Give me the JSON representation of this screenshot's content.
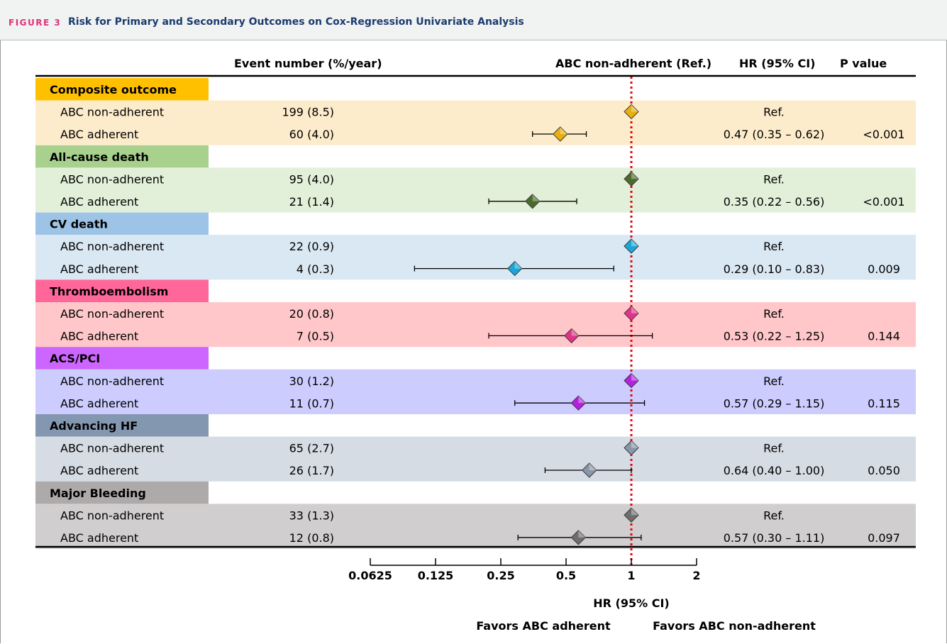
{
  "figure": {
    "label": "FIGURE 3",
    "title": "Risk for Primary and Secondary Outcomes on Cox-Regression Univariate Analysis"
  },
  "columns": {
    "events": "Event number (%/year)",
    "reference": "ABC non-adherent (Ref.)",
    "hr": "HR (95% CI)",
    "p": "P value"
  },
  "chart_data": {
    "type": "forest",
    "x_scale": "log2",
    "xlim": [
      0.0625,
      2
    ],
    "x_ticks": [
      {
        "value": 0.0625,
        "label": "0.0625"
      },
      {
        "value": 0.125,
        "label": "0.125"
      },
      {
        "value": 0.25,
        "label": "0.25"
      },
      {
        "value": 0.5,
        "label": "0.5"
      },
      {
        "value": 1,
        "label": "1"
      },
      {
        "value": 2,
        "label": "2"
      }
    ],
    "reference_line": 1,
    "xlabel": "HR (95% CI)",
    "favors_left": "Favors ABC adherent",
    "favors_right": "Favors ABC non-adherent",
    "groups": [
      {
        "name": "Composite outcome",
        "header_color": "#ffc000",
        "band_color": "#fdeccb",
        "marker_color": "#e6b010",
        "rows": [
          {
            "label": "ABC non-adherent",
            "events": "199 (8.5)",
            "hr": 1,
            "lo": null,
            "hi": null,
            "hr_text": "Ref.",
            "p": ""
          },
          {
            "label": "ABC adherent",
            "events": "60 (4.0)",
            "hr": 0.47,
            "lo": 0.35,
            "hi": 0.62,
            "hr_text": "0.47 (0.35 – 0.62)",
            "p": "<0.001"
          }
        ]
      },
      {
        "name": "All-cause death",
        "header_color": "#a9d18e",
        "band_color": "#e2f0d9",
        "marker_color": "#4a6b2a",
        "rows": [
          {
            "label": "ABC non-adherent",
            "events": "95 (4.0)",
            "hr": 1,
            "lo": null,
            "hi": null,
            "hr_text": "Ref.",
            "p": ""
          },
          {
            "label": "ABC adherent",
            "events": "21 (1.4)",
            "hr": 0.35,
            "lo": 0.22,
            "hi": 0.56,
            "hr_text": "0.35 (0.22 – 0.56)",
            "p": "<0.001"
          }
        ]
      },
      {
        "name": "CV death",
        "header_color": "#9dc3e6",
        "band_color": "#dae8f3",
        "marker_color": "#1aa7d8",
        "rows": [
          {
            "label": "ABC non-adherent",
            "events": "22 (0.9)",
            "hr": 1,
            "lo": null,
            "hi": null,
            "hr_text": "Ref.",
            "p": ""
          },
          {
            "label": "ABC adherent",
            "events": "4 (0.3)",
            "hr": 0.29,
            "lo": 0.1,
            "hi": 0.83,
            "hr_text": "0.29 (0.10 – 0.83)",
            "p": "0.009"
          }
        ]
      },
      {
        "name": "Thromboembolism",
        "header_color": "#ff6699",
        "band_color": "#ffc7c9",
        "marker_color": "#e0338a",
        "rows": [
          {
            "label": "ABC non-adherent",
            "events": "20 (0.8)",
            "hr": 1,
            "lo": null,
            "hi": null,
            "hr_text": "Ref.",
            "p": ""
          },
          {
            "label": "ABC adherent",
            "events": "7 (0.5)",
            "hr": 0.53,
            "lo": 0.22,
            "hi": 1.25,
            "hr_text": "0.53 (0.22 – 1.25)",
            "p": "0.144"
          }
        ]
      },
      {
        "name": "ACS/PCI",
        "header_color": "#cc66ff",
        "band_color": "#ccccff",
        "marker_color": "#b41fe0",
        "rows": [
          {
            "label": "ABC non-adherent",
            "events": "30 (1.2)",
            "hr": 1,
            "lo": null,
            "hi": null,
            "hr_text": "Ref.",
            "p": ""
          },
          {
            "label": "ABC adherent",
            "events": "11 (0.7)",
            "hr": 0.57,
            "lo": 0.29,
            "hi": 1.15,
            "hr_text": "0.57 (0.29 – 1.15)",
            "p": "0.115"
          }
        ]
      },
      {
        "name": "Advancing HF",
        "header_color": "#8497b0",
        "band_color": "#d6dce4",
        "marker_color": "#8896a8",
        "rows": [
          {
            "label": "ABC non-adherent",
            "events": "65 (2.7)",
            "hr": 1,
            "lo": null,
            "hi": null,
            "hr_text": "Ref.",
            "p": ""
          },
          {
            "label": "ABC adherent",
            "events": "26 (1.7)",
            "hr": 0.64,
            "lo": 0.4,
            "hi": 1.0,
            "hr_text": "0.64 (0.40 – 1.00)",
            "p": "0.050"
          }
        ]
      },
      {
        "name": "Major Bleeding",
        "header_color": "#aeaaaa",
        "band_color": "#d0cece",
        "marker_color": "#6e6e6e",
        "rows": [
          {
            "label": "ABC non-adherent",
            "events": "33 (1.3)",
            "hr": 1,
            "lo": null,
            "hi": null,
            "hr_text": "Ref.",
            "p": ""
          },
          {
            "label": "ABC adherent",
            "events": "12 (0.8)",
            "hr": 0.57,
            "lo": 0.3,
            "hi": 1.11,
            "hr_text": "0.57 (0.30 – 1.11)",
            "p": "0.097"
          }
        ]
      }
    ]
  }
}
